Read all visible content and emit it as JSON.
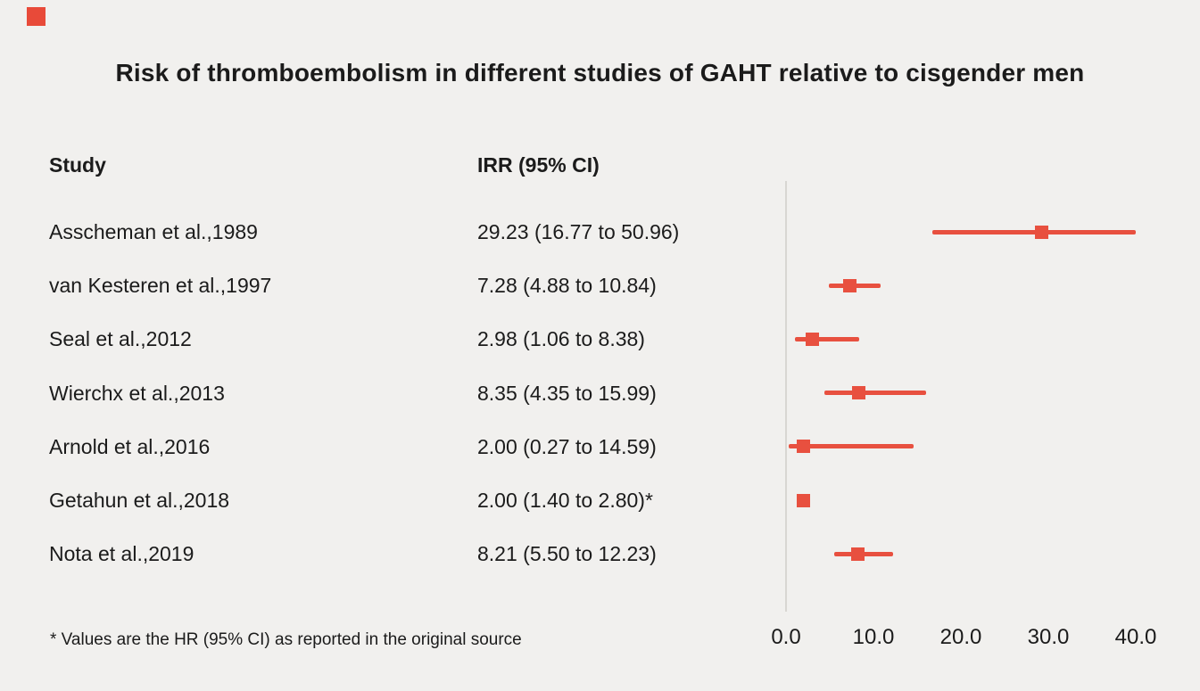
{
  "brand": {
    "accent_color": "#e84a39"
  },
  "title": "Risk of thromboembolism in different studies of GAHT relative to cisgender men",
  "columns": {
    "study": "Study",
    "irr": "IRR (95% CI)"
  },
  "footnote": "* Values are the HR (95% CI) as reported in the original source",
  "chart_data": {
    "type": "forest",
    "title": "Risk of thromboembolism in different studies of GAHT relative to cisgender men",
    "xlabel": "",
    "xlim": [
      0,
      40
    ],
    "ticks": [
      0,
      10,
      20,
      30,
      40
    ],
    "tick_labels": [
      "0.0",
      "10.0",
      "20.0",
      "30.0",
      "40.0"
    ],
    "marker_color": "#e8503f",
    "axis_color": "#d8d6d2",
    "grid": false,
    "studies": [
      {
        "label": "Asscheman et al.,1989",
        "irr_text": "29.23 (16.77 to 50.96)",
        "irr": 29.23,
        "lo": 16.77,
        "hi": 50.96
      },
      {
        "label": "van Kesteren et al.,1997",
        "irr_text": "7.28 (4.88 to 10.84)",
        "irr": 7.28,
        "lo": 4.88,
        "hi": 10.84
      },
      {
        "label": "Seal et al.,2012",
        "irr_text": "2.98 (1.06 to 8.38)",
        "irr": 2.98,
        "lo": 1.06,
        "hi": 8.38
      },
      {
        "label": "Wierchx et al.,2013",
        "irr_text": "8.35 (4.35 to 15.99)",
        "irr": 8.35,
        "lo": 4.35,
        "hi": 15.99
      },
      {
        "label": "Arnold et al.,2016",
        "irr_text": "2.00 (0.27 to 14.59)",
        "irr": 2.0,
        "lo": 0.27,
        "hi": 14.59
      },
      {
        "label": "Getahun et al.,2018",
        "irr_text": "2.00 (1.40 to 2.80)*",
        "irr": 2.0,
        "lo": 1.4,
        "hi": 2.8
      },
      {
        "label": "Nota et al.,2019",
        "irr_text": "8.21 (5.50 to 12.23)",
        "irr": 8.21,
        "lo": 5.5,
        "hi": 12.23
      }
    ]
  }
}
